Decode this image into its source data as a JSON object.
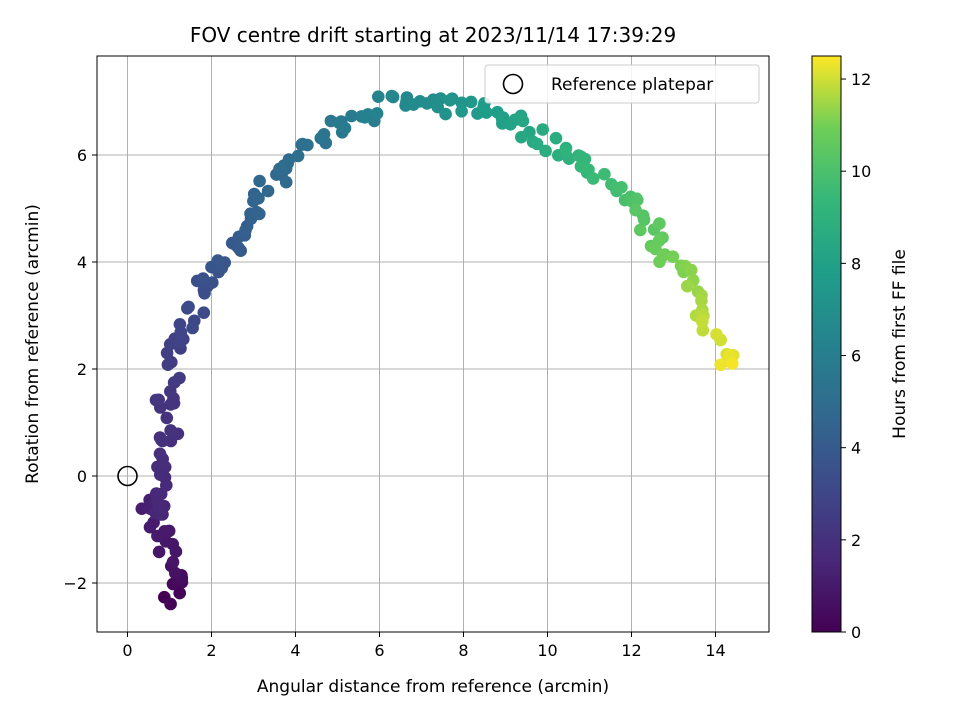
{
  "chart_data": {
    "type": "scatter",
    "title": "FOV centre drift starting at 2023/11/14 17:39:29",
    "xlabel": "Angular distance from reference (arcmin)",
    "ylabel": "Rotation from reference (arcmin)",
    "xlim": [
      -0.7,
      15.2
    ],
    "ylim": [
      -2.9,
      7.85
    ],
    "xticks": [
      0,
      2,
      4,
      6,
      8,
      10,
      12,
      14
    ],
    "yticks": [
      -2,
      0,
      2,
      4,
      6
    ],
    "xtick_labels": [
      "0",
      "2",
      "4",
      "6",
      "8",
      "10",
      "12",
      "14"
    ],
    "ytick_labels": [
      "−2",
      "0",
      "2",
      "4",
      "6"
    ],
    "grid": true,
    "legend": {
      "position": "top-right",
      "entries": [
        "Reference platepar"
      ]
    },
    "reference_point": {
      "x": 0,
      "y": 0
    },
    "colorbar": {
      "label": "Hours from first FF file",
      "min": 0,
      "max": 12.5,
      "ticks": [
        0,
        2,
        4,
        6,
        8,
        10,
        12
      ],
      "tick_labels": [
        "0",
        "2",
        "4",
        "6",
        "8",
        "10",
        "12"
      ],
      "colormap": "viridis"
    },
    "anchors": [
      [
        1.1,
        -2.4,
        0.0
      ],
      [
        1.2,
        -1.9,
        0.4
      ],
      [
        1.0,
        -1.6,
        0.8
      ],
      [
        0.5,
        -0.45,
        1.2
      ],
      [
        0.8,
        -0.7,
        1.5
      ],
      [
        0.7,
        0.2,
        1.8
      ],
      [
        1.0,
        0.7,
        2.0
      ],
      [
        0.9,
        1.5,
        2.2
      ],
      [
        1.1,
        2.0,
        2.5
      ],
      [
        1.3,
        2.5,
        2.8
      ],
      [
        1.6,
        3.0,
        3.2
      ],
      [
        1.7,
        3.5,
        3.4
      ],
      [
        2.8,
        4.6,
        4.2
      ],
      [
        2.9,
        4.9,
        4.4
      ],
      [
        3.4,
        5.5,
        4.7
      ],
      [
        4.0,
        6.0,
        5.0
      ],
      [
        5.0,
        6.5,
        5.6
      ],
      [
        6.2,
        7.0,
        6.4
      ],
      [
        7.3,
        6.9,
        6.9
      ],
      [
        8.2,
        6.9,
        7.6
      ],
      [
        9.3,
        6.6,
        8.2
      ],
      [
        10.3,
        6.1,
        8.9
      ],
      [
        11.3,
        5.6,
        9.6
      ],
      [
        12.2,
        4.9,
        10.3
      ],
      [
        13.0,
        4.0,
        11.0
      ],
      [
        13.6,
        3.4,
        11.5
      ],
      [
        14.0,
        2.6,
        12.0
      ],
      [
        14.4,
        2.1,
        12.4
      ]
    ]
  }
}
